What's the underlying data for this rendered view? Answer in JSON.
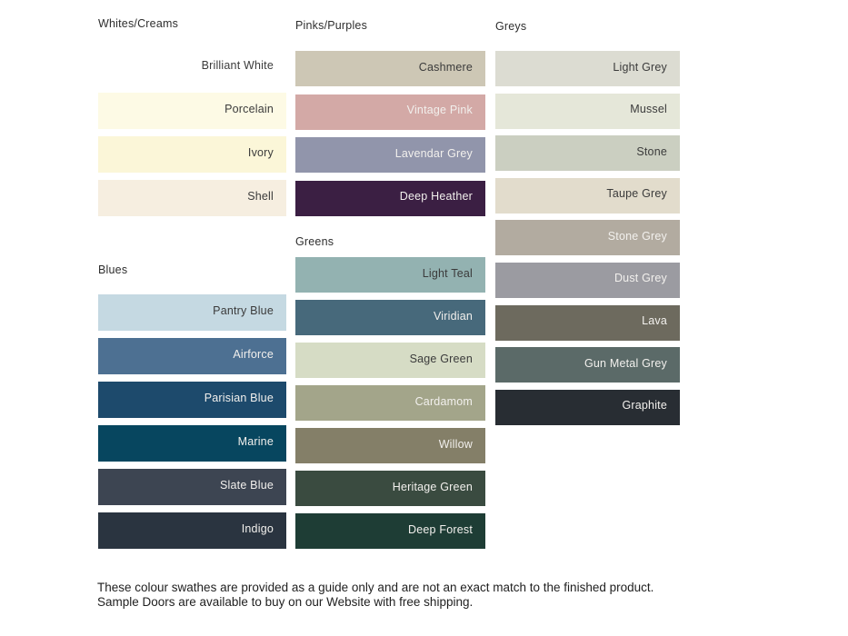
{
  "page": {
    "background": "#ffffff"
  },
  "label_colors": {
    "dark": "#3b3b3b",
    "light": "#f2f0ed"
  },
  "sections": [
    {
      "id": "whites-creams",
      "title": "Whites/Creams",
      "swatches": [
        {
          "name": "Brilliant White",
          "bg": "#ffffff",
          "text": "dark"
        },
        {
          "name": "Porcelain",
          "bg": "#fdfae5",
          "text": "dark"
        },
        {
          "name": "Ivory",
          "bg": "#fbf6d8",
          "text": "dark"
        },
        {
          "name": "Shell",
          "bg": "#f6eee0",
          "text": "dark"
        }
      ]
    },
    {
      "id": "blues",
      "title": "Blues",
      "swatches": [
        {
          "name": "Pantry Blue",
          "bg": "#c5d9e2",
          "text": "dark"
        },
        {
          "name": "Airforce",
          "bg": "#4d7092",
          "text": "light"
        },
        {
          "name": "Parisian Blue",
          "bg": "#1d4a6c",
          "text": "light"
        },
        {
          "name": "Marine",
          "bg": "#07465f",
          "text": "light"
        },
        {
          "name": "Slate Blue",
          "bg": "#3d4552",
          "text": "light"
        },
        {
          "name": "Indigo",
          "bg": "#2a3440",
          "text": "light"
        }
      ]
    },
    {
      "id": "pinks-purples",
      "title": "Pinks/Purples",
      "swatches": [
        {
          "name": "Cashmere",
          "bg": "#cdc7b5",
          "text": "dark"
        },
        {
          "name": "Vintage Pink",
          "bg": "#d3a9a6",
          "text": "light"
        },
        {
          "name": "Lavendar Grey",
          "bg": "#9195ab",
          "text": "light"
        },
        {
          "name": "Deep Heather",
          "bg": "#3b1f43",
          "text": "light"
        }
      ]
    },
    {
      "id": "greens",
      "title": "Greens",
      "swatches": [
        {
          "name": "Light Teal",
          "bg": "#93b2b1",
          "text": "dark"
        },
        {
          "name": "Viridian",
          "bg": "#47697b",
          "text": "light"
        },
        {
          "name": "Sage Green",
          "bg": "#d6dcc5",
          "text": "dark"
        },
        {
          "name": "Cardamom",
          "bg": "#a3a58a",
          "text": "light"
        },
        {
          "name": "Willow",
          "bg": "#847f68",
          "text": "light"
        },
        {
          "name": "Heritage Green",
          "bg": "#3a4b40",
          "text": "light"
        },
        {
          "name": "Deep Forest",
          "bg": "#1e3d35",
          "text": "light"
        }
      ]
    },
    {
      "id": "greys",
      "title": "Greys",
      "swatches": [
        {
          "name": "Light Grey",
          "bg": "#dcdcd2",
          "text": "dark"
        },
        {
          "name": "Mussel",
          "bg": "#e5e7d9",
          "text": "dark"
        },
        {
          "name": "Stone",
          "bg": "#cbcfc1",
          "text": "dark"
        },
        {
          "name": "Taupe Grey",
          "bg": "#e2dccc",
          "text": "dark"
        },
        {
          "name": "Stone Grey",
          "bg": "#b2aba0",
          "text": "light"
        },
        {
          "name": "Dust Grey",
          "bg": "#9b9ba1",
          "text": "light"
        },
        {
          "name": "Lava",
          "bg": "#6d6a5e",
          "text": "light"
        },
        {
          "name": "Gun Metal Grey",
          "bg": "#5b6a68",
          "text": "light"
        },
        {
          "name": "Graphite",
          "bg": "#282d33",
          "text": "light"
        }
      ]
    }
  ],
  "footer": {
    "text": "These colour swathes are provided as a guide only and are not an exact match to the finished product.  Sample Doors are available to buy on our Website with free shipping."
  }
}
